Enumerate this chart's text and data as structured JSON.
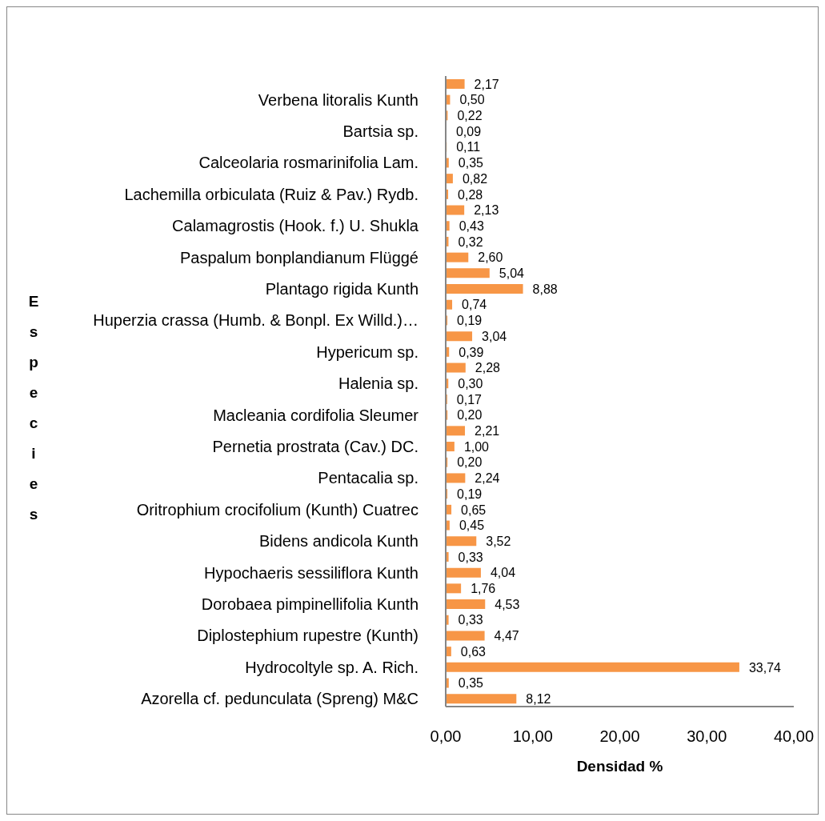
{
  "chart_data": {
    "type": "bar",
    "orientation": "horizontal",
    "categories": [
      null,
      "Verbena litoralis Kunth",
      null,
      "Bartsia sp.",
      null,
      "Calceolaria rosmarinifolia Lam.",
      null,
      "Lachemilla orbiculata (Ruiz & Pav.) Rydb.",
      null,
      "Calamagrostis (Hook. f.) U. Shukla",
      null,
      "Paspalum bonplandianum Flüggé",
      null,
      "Plantago rigida Kunth",
      null,
      "Huperzia crassa (Humb. & Bonpl. Ex Willd.)…",
      null,
      "Hypericum sp.",
      null,
      "Halenia sp.",
      null,
      "Macleania cordifolia Sleumer",
      null,
      "Pernetia prostrata (Cav.) DC.",
      null,
      "Pentacalia sp.",
      null,
      "Oritrophium crocifolium (Kunth) Cuatrec",
      null,
      "Bidens andicola Kunth",
      null,
      "Hypochaeris sessiliflora Kunth",
      null,
      "Dorobaea pimpinellifolia Kunth",
      null,
      "Diplostephium rupestre (Kunth)",
      null,
      "Hydrocoltyle sp. A. Rich.",
      null,
      "Azorella cf. pedunculata (Spreng) M&C"
    ],
    "values": [
      2.17,
      0.5,
      0.22,
      0.09,
      0.11,
      0.35,
      0.82,
      0.28,
      2.13,
      0.43,
      0.32,
      2.6,
      5.04,
      8.88,
      0.74,
      0.19,
      3.04,
      0.39,
      2.28,
      0.3,
      0.17,
      0.2,
      2.21,
      1.0,
      0.2,
      2.24,
      0.19,
      0.65,
      0.45,
      3.52,
      0.33,
      4.04,
      1.76,
      4.53,
      0.33,
      4.47,
      0.63,
      33.74,
      0.35,
      8.12
    ],
    "value_labels": [
      "2,17",
      "0,50",
      "0,22",
      "0,09",
      "0,11",
      "0,35",
      "0,82",
      "0,28",
      "2,13",
      "0,43",
      "0,32",
      "2,60",
      "5,04",
      "8,88",
      "0,74",
      "0,19",
      "3,04",
      "0,39",
      "2,28",
      "0,30",
      "0,17",
      "0,20",
      "2,21",
      "1,00",
      "0,20",
      "2,24",
      "0,19",
      "0,65",
      "0,45",
      "3,52",
      "0,33",
      "4,04",
      "1,76",
      "4,53",
      "0,33",
      "4,47",
      "0,63",
      "33,74",
      "0,35",
      "8,12"
    ],
    "color": "#f79646",
    "xlim": [
      0,
      40
    ],
    "xticks": [
      {
        "value": 0,
        "label": "0,00"
      },
      {
        "value": 10,
        "label": "10,00"
      },
      {
        "value": 20,
        "label": "20,00"
      },
      {
        "value": 30,
        "label": "30,00"
      },
      {
        "value": 40,
        "label": "40,00"
      }
    ],
    "xlabel": "Densidad %",
    "ylabel": "Especies"
  }
}
